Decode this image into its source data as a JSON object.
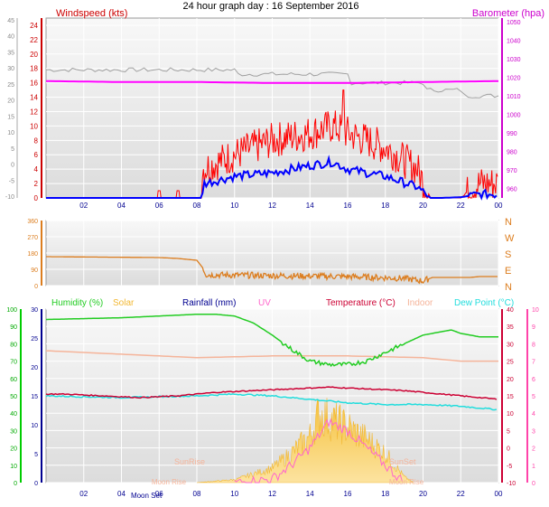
{
  "header": {
    "title": "24 hour graph day : 16 September 2016",
    "wind_label": "Windspeed (kts)",
    "baro_label": "Barometer (hpa)"
  },
  "colors": {
    "wind": "#ff0000",
    "gust_avg": "#0000ff",
    "baro": "#ff00ff",
    "grey_trace": "#a0a0a0",
    "direction": "#dc7d1e",
    "humidity": "#22cc22",
    "solar": "#f2b833",
    "rainfall": "#000090",
    "uv": "#ff66cc",
    "temperature": "#cc0033",
    "indoor": "#f5b49a",
    "dewpoint": "#22dddd",
    "axis_green": "#00cc00",
    "axis_pink": "#ff44aa",
    "axis_grey": "#888888"
  },
  "chart_data": [
    {
      "type": "line",
      "title": "24 hour graph day : 16 September 2016",
      "x_ticks": [
        "02",
        "04",
        "06",
        "08",
        "10",
        "12",
        "14",
        "16",
        "18",
        "20",
        "22",
        "00"
      ],
      "left_axis": {
        "label": "Windspeed (kts)",
        "ticks": [
          "0",
          "2",
          "4",
          "6",
          "8",
          "10",
          "12",
          "14",
          "16",
          "18",
          "20",
          "22",
          "24"
        ],
        "range": [
          0,
          25
        ]
      },
      "outer_left_axis": {
        "ticks": [
          "-10",
          "-5",
          "0",
          "5",
          "10",
          "15",
          "20",
          "25",
          "30",
          "35",
          "40",
          "45"
        ]
      },
      "right_axis": {
        "label": "Barometer (hpa)",
        "ticks": [
          "960",
          "970",
          "980",
          "990",
          "1000",
          "1010",
          "1020",
          "1030",
          "1040",
          "1050"
        ],
        "range": [
          955,
          1052
        ]
      },
      "series": [
        {
          "name": "Windspeed (kts)",
          "x_hours": [
            0,
            8.2,
            8.3,
            10,
            12,
            14,
            15.2,
            16,
            18,
            19.7,
            20.4,
            21,
            22,
            23,
            23.8
          ],
          "values": [
            0,
            0,
            4,
            6,
            8,
            9,
            10,
            9,
            7,
            4,
            0,
            0,
            0,
            2,
            2
          ]
        },
        {
          "name": "",
          "x_hours": [
            0,
            8.2,
            8.4,
            10,
            12,
            14,
            15.2,
            16,
            18,
            19.7,
            20.4,
            21,
            22,
            23,
            23.8
          ],
          "values": [
            0,
            0,
            2,
            3,
            3.5,
            4.5,
            5,
            4,
            3,
            1.5,
            0,
            0,
            0.1,
            0.5,
            0.5
          ]
        },
        {
          "name": "Barometer (hpa)",
          "x_hours": [
            0,
            4,
            8,
            12,
            16,
            20,
            24
          ],
          "values": [
            1018,
            1017.5,
            1017.5,
            1017,
            1017,
            1017.5,
            1018
          ]
        }
      ]
    },
    {
      "type": "line",
      "y_ticks": [
        "0",
        "90",
        "180",
        "270",
        "360"
      ],
      "right_labels": [
        "N",
        "E",
        "S",
        "W",
        "N"
      ],
      "x_ticks": [
        "02",
        "04",
        "06",
        "08",
        "10",
        "12",
        "14",
        "16",
        "18",
        "20",
        "22",
        "00"
      ],
      "series": [
        {
          "name": "",
          "x_hours": [
            0,
            6,
            7,
            8,
            8.3,
            8.5,
            12,
            16,
            19,
            20,
            20.5,
            22.5,
            23,
            24
          ],
          "values": [
            160,
            155,
            150,
            140,
            100,
            60,
            55,
            50,
            40,
            25,
            45,
            45,
            50,
            50
          ]
        }
      ],
      "ylim": [
        0,
        360
      ]
    },
    {
      "type": "line",
      "legend_labels": [
        "Humidity (%)",
        "Solar",
        "Rainfall (mm)",
        "UV",
        "Temperature (°C)",
        "Indoor",
        "Dew Point (°C)"
      ],
      "x_ticks": [
        "02",
        "04",
        "06",
        "08",
        "10",
        "12",
        "14",
        "16",
        "18",
        "20",
        "22",
        "00"
      ],
      "humidity_axis": {
        "ticks": [
          "0",
          "10",
          "20",
          "30",
          "40",
          "50",
          "60",
          "70",
          "80",
          "90",
          "100"
        ],
        "range": [
          0,
          100
        ]
      },
      "rainfall_axis": {
        "ticks": [
          "0",
          "5",
          "10",
          "15",
          "20",
          "25",
          "30"
        ],
        "range": [
          0,
          30
        ]
      },
      "temperature_axis": {
        "ticks": [
          "-10",
          "-5",
          "0",
          "5",
          "10",
          "15",
          "20",
          "25",
          "30",
          "35",
          "40"
        ],
        "range": [
          -10,
          40
        ]
      },
      "uv_axis": {
        "ticks": [
          "0",
          "1",
          "2",
          "3",
          "4",
          "5",
          "6",
          "7",
          "8",
          "9",
          "10"
        ],
        "range": [
          0,
          10
        ]
      },
      "annotations": {
        "sunrise": "SunRise",
        "sunset": "SunSet",
        "moonrise": "Moon Rise",
        "moonset": "Moon Set"
      },
      "series": [
        {
          "name": "Humidity (%)",
          "x_hours": [
            0,
            4,
            6,
            8,
            9,
            10,
            11,
            12,
            13,
            14,
            15,
            16,
            17,
            18,
            19,
            20,
            21,
            21.5,
            22,
            23,
            24
          ],
          "values": [
            94,
            95,
            96,
            97,
            97,
            96,
            92,
            85,
            77,
            70,
            68,
            68,
            70,
            75,
            80,
            85,
            87,
            88,
            86,
            84,
            84
          ]
        },
        {
          "name": "Solar",
          "x_hours": [
            8,
            10,
            12,
            13,
            14,
            14.5,
            15,
            16,
            17,
            18,
            19,
            19.5
          ],
          "values": [
            0,
            0.5,
            2.5,
            5,
            8,
            12,
            11,
            9.5,
            7.5,
            5,
            1,
            0
          ]
        },
        {
          "name": "UV",
          "x_hours": [
            10,
            12,
            13,
            14,
            15,
            16,
            17,
            18,
            19
          ],
          "values": [
            0,
            0.2,
            1,
            2,
            3.5,
            3,
            2,
            1,
            0
          ]
        },
        {
          "name": "Temperature (°C)",
          "x_hours": [
            0,
            1,
            3,
            5,
            7,
            9,
            11,
            13,
            15,
            17,
            19,
            21,
            23,
            24
          ],
          "values": [
            15.5,
            15.5,
            15,
            14.5,
            15,
            16,
            16.5,
            17,
            17.5,
            17,
            16.5,
            15.5,
            14.5,
            14
          ]
        },
        {
          "name": "Indoor",
          "x_hours": [
            0,
            4,
            8,
            12,
            16,
            20,
            22,
            24
          ],
          "values": [
            28,
            27,
            26,
            26.5,
            26.5,
            26,
            25,
            25
          ]
        },
        {
          "name": "Dew Point (°C)",
          "x_hours": [
            0,
            4,
            8,
            10,
            12,
            14,
            16,
            18,
            20,
            22,
            24
          ],
          "values": [
            15,
            14.5,
            15,
            15.5,
            15,
            14,
            13,
            12.5,
            12.5,
            12,
            11
          ]
        }
      ]
    }
  ]
}
